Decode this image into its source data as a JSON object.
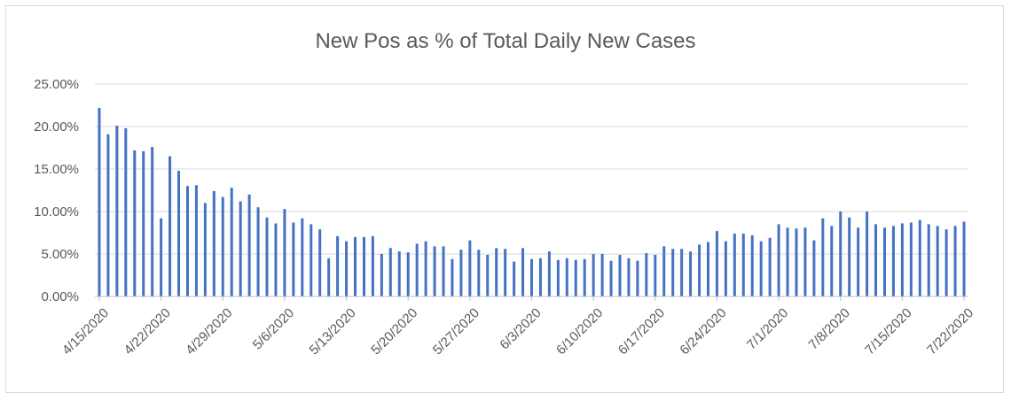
{
  "chart_data": {
    "type": "bar",
    "title": "New Pos as % of Total Daily New Cases",
    "xlabel": "",
    "ylabel": "",
    "ylim": [
      0,
      0.25
    ],
    "y_ticks": [
      "0.00%",
      "5.00%",
      "10.00%",
      "15.00%",
      "20.00%",
      "25.00%"
    ],
    "x_tick_labels": [
      "4/15/2020",
      "4/22/2020",
      "4/29/2020",
      "5/6/2020",
      "5/13/2020",
      "5/20/2020",
      "5/27/2020",
      "6/3/2020",
      "6/10/2020",
      "6/17/2020",
      "6/24/2020",
      "7/1/2020",
      "7/8/2020",
      "7/15/2020",
      "7/22/2020"
    ],
    "grid": true,
    "legend": "none",
    "bar_color": "#4472c4",
    "series": [
      {
        "values": [
          0.222,
          0.191,
          0.201,
          0.198,
          0.172,
          0.171,
          0.176,
          0.092,
          0.165,
          0.148,
          0.13,
          0.131,
          0.11,
          0.124,
          0.117,
          0.128,
          0.112,
          0.12,
          0.105,
          0.093,
          0.086,
          0.103,
          0.087,
          0.092,
          0.085,
          0.079,
          0.045,
          0.071,
          0.065,
          0.07,
          0.07,
          0.071,
          0.05,
          0.057,
          0.053,
          0.052,
          0.062,
          0.065,
          0.059,
          0.059,
          0.044,
          0.055,
          0.066,
          0.055,
          0.049,
          0.057,
          0.056,
          0.041,
          0.057,
          0.044,
          0.045,
          0.053,
          0.043,
          0.045,
          0.043,
          0.044,
          0.05,
          0.05,
          0.042,
          0.049,
          0.045,
          0.042,
          0.051,
          0.049,
          0.059,
          0.056,
          0.056,
          0.053,
          0.061,
          0.064,
          0.077,
          0.065,
          0.074,
          0.074,
          0.072,
          0.065,
          0.069,
          0.085,
          0.081,
          0.08,
          0.081,
          0.066,
          0.092,
          0.083,
          0.1,
          0.093,
          0.081,
          0.1,
          0.085,
          0.081,
          0.083,
          0.086,
          0.087,
          0.09,
          0.085,
          0.083,
          0.079,
          0.083,
          0.088
        ]
      }
    ]
  }
}
